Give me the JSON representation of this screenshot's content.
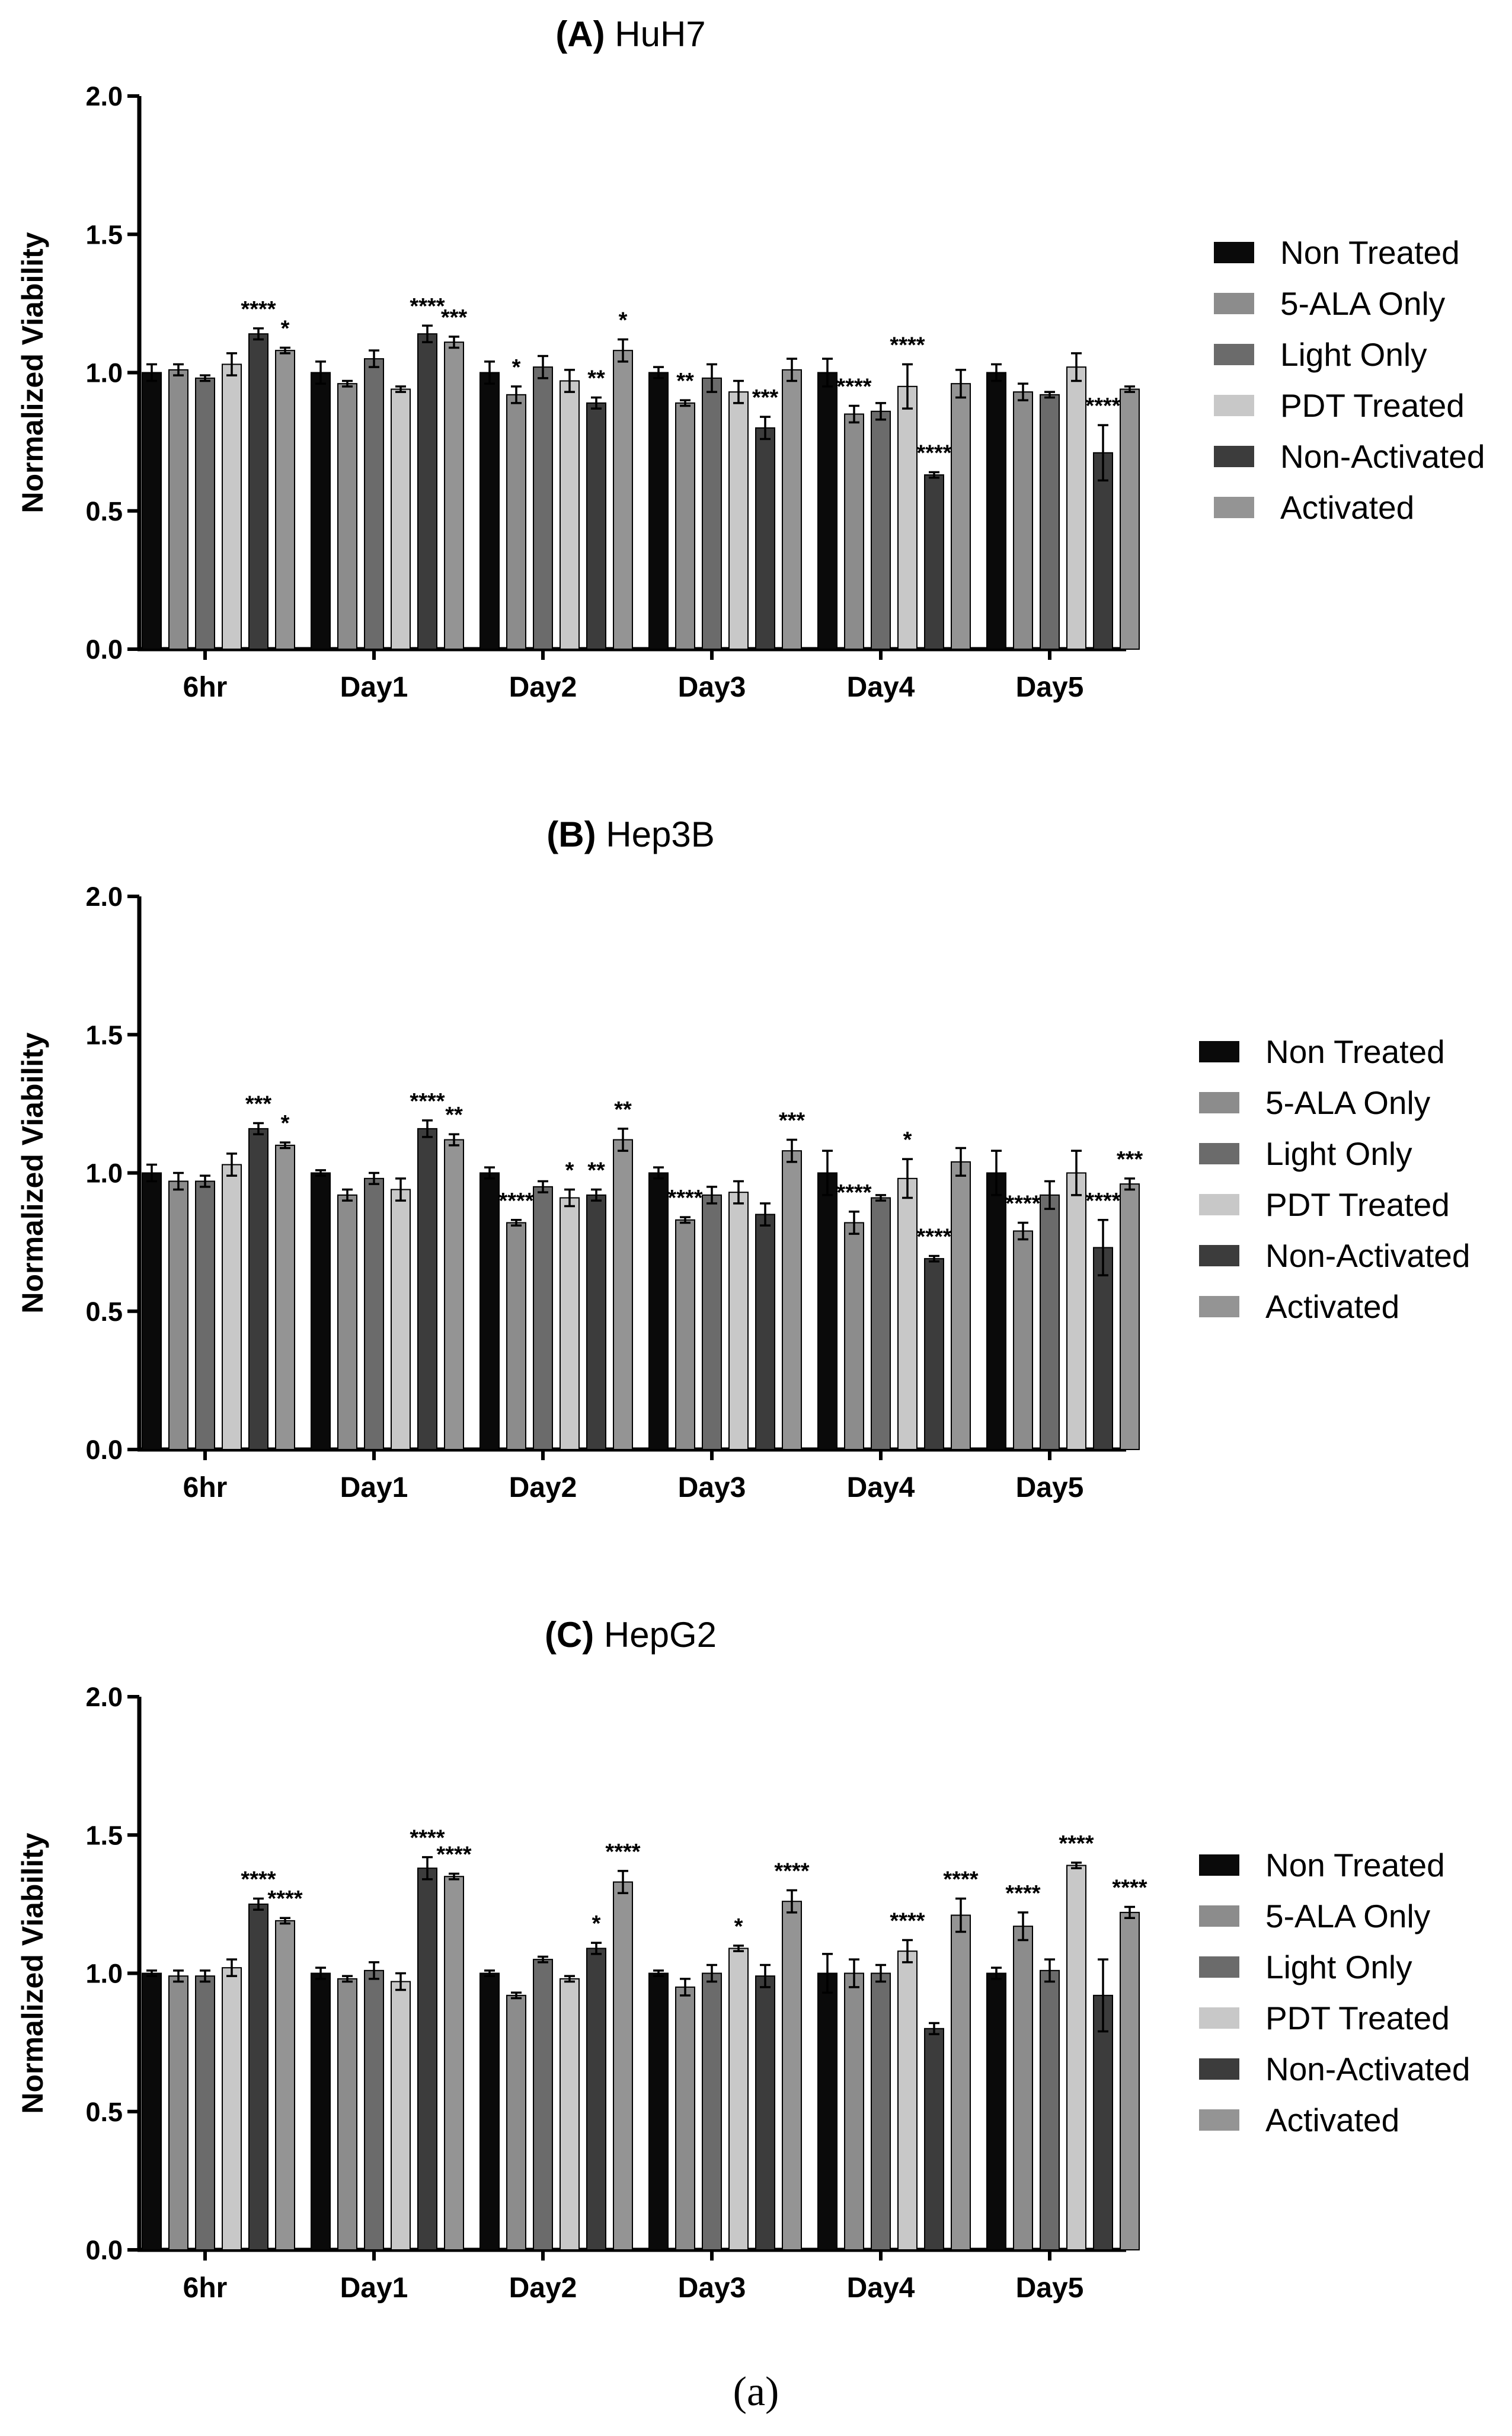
{
  "figure_caption": "(a)",
  "legend_series": [
    "Non Treated",
    "5-ALA Only",
    "Light Only",
    "PDT Treated",
    "Non-Activated",
    "Activated"
  ],
  "colors": {
    "Non Treated": "#0a0a0a",
    "5-ALA Only": "#8c8c8c",
    "Light Only": "#6b6b6b",
    "PDT Treated": "#c8c8c8",
    "Non-Activated": "#3c3c3c",
    "Activated": "#949494"
  },
  "chart_data": [
    {
      "type": "bar",
      "title_prefix": "(A)",
      "title_name": "HuH7",
      "xlabel": "",
      "ylabel": "Normalized Viability",
      "ylim": [
        0,
        2.0
      ],
      "yticks": [
        "0.0",
        "0.5",
        "1.0",
        "1.5",
        "2.0"
      ],
      "categories": [
        "6hr",
        "Day1",
        "Day2",
        "Day3",
        "Day4",
        "Day5"
      ],
      "series": [
        {
          "name": "Non Treated",
          "values": [
            1.0,
            1.0,
            1.0,
            1.0,
            1.0,
            1.0
          ],
          "errors": [
            0.03,
            0.04,
            0.04,
            0.02,
            0.05,
            0.03
          ],
          "stars": [
            "",
            "",
            "",
            "",
            "",
            ""
          ]
        },
        {
          "name": "5-ALA Only",
          "values": [
            1.01,
            0.96,
            0.92,
            0.89,
            0.85,
            0.93
          ],
          "errors": [
            0.02,
            0.01,
            0.03,
            0.01,
            0.03,
            0.03
          ],
          "stars": [
            "",
            "",
            "*",
            "**",
            "****",
            ""
          ]
        },
        {
          "name": "Light Only",
          "values": [
            0.98,
            1.05,
            1.02,
            0.98,
            0.86,
            0.92
          ],
          "errors": [
            0.01,
            0.03,
            0.04,
            0.05,
            0.03,
            0.01
          ],
          "stars": [
            "",
            "",
            "",
            "",
            "",
            ""
          ]
        },
        {
          "name": "PDT Treated",
          "values": [
            1.03,
            0.94,
            0.97,
            0.93,
            0.95,
            1.02
          ],
          "errors": [
            0.04,
            0.01,
            0.04,
            0.04,
            0.08,
            0.05
          ],
          "stars": [
            "",
            "",
            "",
            "",
            "****",
            ""
          ]
        },
        {
          "name": "Non-Activated",
          "values": [
            1.14,
            1.14,
            0.89,
            0.8,
            0.63,
            0.71
          ],
          "errors": [
            0.02,
            0.03,
            0.02,
            0.04,
            0.01,
            0.1
          ],
          "stars": [
            "****",
            "****",
            "**",
            "***",
            "****",
            "****"
          ]
        },
        {
          "name": "Activated",
          "values": [
            1.08,
            1.11,
            1.08,
            1.01,
            0.96,
            0.94
          ],
          "errors": [
            0.01,
            0.02,
            0.04,
            0.04,
            0.05,
            0.01
          ],
          "stars": [
            "*",
            "***",
            "*",
            "",
            "",
            ""
          ]
        }
      ]
    },
    {
      "type": "bar",
      "title_prefix": "(B)",
      "title_name": "Hep3B",
      "xlabel": "",
      "ylabel": "Normalized Viability",
      "ylim": [
        0,
        2.0
      ],
      "yticks": [
        "0.0",
        "0.5",
        "1.0",
        "1.5",
        "2.0"
      ],
      "categories": [
        "6hr",
        "Day1",
        "Day2",
        "Day3",
        "Day4",
        "Day5"
      ],
      "series": [
        {
          "name": "Non Treated",
          "values": [
            1.0,
            1.0,
            1.0,
            1.0,
            1.0,
            1.0
          ],
          "errors": [
            0.03,
            0.01,
            0.02,
            0.02,
            0.08,
            0.08
          ],
          "stars": [
            "",
            "",
            "",
            "",
            "",
            ""
          ]
        },
        {
          "name": "5-ALA Only",
          "values": [
            0.97,
            0.92,
            0.82,
            0.83,
            0.82,
            0.79
          ],
          "errors": [
            0.03,
            0.02,
            0.01,
            0.01,
            0.04,
            0.03
          ],
          "stars": [
            "",
            "",
            "****",
            "****",
            "****",
            "****"
          ]
        },
        {
          "name": "Light Only",
          "values": [
            0.97,
            0.98,
            0.95,
            0.92,
            0.91,
            0.92
          ],
          "errors": [
            0.02,
            0.02,
            0.02,
            0.03,
            0.01,
            0.05
          ],
          "stars": [
            "",
            "",
            "",
            "",
            "",
            ""
          ]
        },
        {
          "name": "PDT Treated",
          "values": [
            1.03,
            0.94,
            0.91,
            0.93,
            0.98,
            1.0
          ],
          "errors": [
            0.04,
            0.04,
            0.03,
            0.04,
            0.07,
            0.08
          ],
          "stars": [
            "",
            "",
            "*",
            "",
            "*",
            ""
          ]
        },
        {
          "name": "Non-Activated",
          "values": [
            1.16,
            1.16,
            0.92,
            0.85,
            0.69,
            0.73
          ],
          "errors": [
            0.02,
            0.03,
            0.02,
            0.04,
            0.01,
            0.1
          ],
          "stars": [
            "***",
            "****",
            "**",
            "",
            "****",
            "****"
          ]
        },
        {
          "name": "Activated",
          "values": [
            1.1,
            1.12,
            1.12,
            1.08,
            1.04,
            0.96
          ],
          "errors": [
            0.01,
            0.02,
            0.04,
            0.04,
            0.05,
            0.02
          ],
          "stars": [
            "*",
            "**",
            "**",
            "***",
            "",
            "***"
          ]
        }
      ]
    },
    {
      "type": "bar",
      "title_prefix": "(C)",
      "title_name": "HepG2",
      "xlabel": "",
      "ylabel": "Normalized Viability",
      "ylim": [
        0,
        2.0
      ],
      "yticks": [
        "0.0",
        "0.5",
        "1.0",
        "1.5",
        "2.0"
      ],
      "categories": [
        "6hr",
        "Day1",
        "Day2",
        "Day3",
        "Day4",
        "Day5"
      ],
      "series": [
        {
          "name": "Non Treated",
          "values": [
            1.0,
            1.0,
            1.0,
            1.0,
            1.0,
            1.0
          ],
          "errors": [
            0.01,
            0.02,
            0.01,
            0.01,
            0.07,
            0.02
          ],
          "stars": [
            "",
            "",
            "",
            "",
            "",
            ""
          ]
        },
        {
          "name": "5-ALA Only",
          "values": [
            0.99,
            0.98,
            0.92,
            0.95,
            1.0,
            1.17
          ],
          "errors": [
            0.02,
            0.01,
            0.01,
            0.03,
            0.05,
            0.05
          ],
          "stars": [
            "",
            "",
            "",
            "",
            "",
            "****"
          ]
        },
        {
          "name": "Light Only",
          "values": [
            0.99,
            1.01,
            1.05,
            1.0,
            1.0,
            1.01
          ],
          "errors": [
            0.02,
            0.03,
            0.01,
            0.03,
            0.03,
            0.04
          ],
          "stars": [
            "",
            "",
            "",
            "",
            "",
            ""
          ]
        },
        {
          "name": "PDT Treated",
          "values": [
            1.02,
            0.97,
            0.98,
            1.09,
            1.08,
            1.39
          ],
          "errors": [
            0.03,
            0.03,
            0.01,
            0.01,
            0.04,
            0.01
          ],
          "stars": [
            "",
            "",
            "",
            "*",
            "****",
            "****"
          ]
        },
        {
          "name": "Non-Activated",
          "values": [
            1.25,
            1.38,
            1.09,
            0.99,
            0.8,
            0.92
          ],
          "errors": [
            0.02,
            0.04,
            0.02,
            0.04,
            0.02,
            0.13
          ],
          "stars": [
            "****",
            "****",
            "*",
            "",
            "",
            ""
          ]
        },
        {
          "name": "Activated",
          "values": [
            1.19,
            1.35,
            1.33,
            1.26,
            1.21,
            1.22
          ],
          "errors": [
            0.01,
            0.01,
            0.04,
            0.04,
            0.06,
            0.02
          ],
          "stars": [
            "****",
            "****",
            "****",
            "****",
            "****",
            "****"
          ]
        }
      ]
    }
  ]
}
